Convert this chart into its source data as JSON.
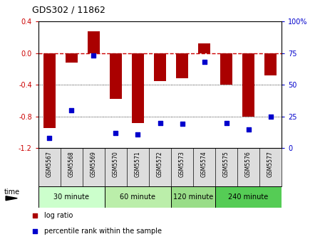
{
  "title": "GDS302 / 11862",
  "samples": [
    "GSM5567",
    "GSM5568",
    "GSM5569",
    "GSM5570",
    "GSM5571",
    "GSM5572",
    "GSM5573",
    "GSM5574",
    "GSM5575",
    "GSM5576",
    "GSM5577"
  ],
  "log_ratio": [
    -0.95,
    -0.12,
    0.28,
    -0.58,
    -0.88,
    -0.35,
    -0.32,
    0.12,
    -0.4,
    -0.8,
    -0.28
  ],
  "percentile": [
    8,
    30,
    73,
    12,
    11,
    20,
    19,
    68,
    20,
    15,
    25
  ],
  "bar_color": "#aa0000",
  "dot_color": "#0000cc",
  "dashed_line_color": "#cc0000",
  "ylim_left": [
    -1.2,
    0.4
  ],
  "ylim_right": [
    0,
    100
  ],
  "groups": [
    {
      "label": "30 minute",
      "start": 0,
      "end": 2,
      "color": "#ccffcc"
    },
    {
      "label": "60 minute",
      "start": 3,
      "end": 5,
      "color": "#bbeeaa"
    },
    {
      "label": "120 minute",
      "start": 6,
      "end": 7,
      "color": "#99dd88"
    },
    {
      "label": "240 minute",
      "start": 8,
      "end": 10,
      "color": "#55cc55"
    }
  ],
  "legend_log_ratio": "log ratio",
  "legend_percentile": "percentile rank within the sample",
  "time_label": "time",
  "bg_color": "#ffffff",
  "grid_color": "#000000",
  "yticks_left": [
    0.4,
    0.0,
    -0.4,
    -0.8,
    -1.2
  ],
  "yticks_right": [
    100,
    75,
    50,
    25,
    0
  ],
  "sample_label_bg": "#dddddd"
}
